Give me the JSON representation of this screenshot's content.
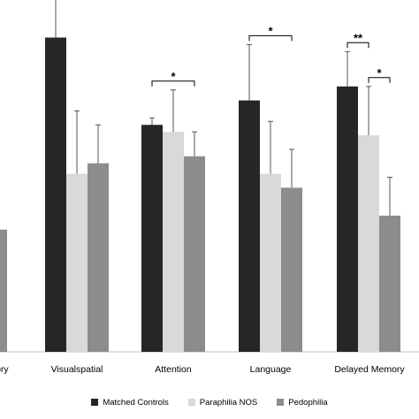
{
  "chart_data": {
    "type": "bar",
    "title": "",
    "xlabel": "",
    "ylabel": "",
    "ylim": [
      0,
      100
    ],
    "categories": [
      "Delayed Memory",
      "Visualspatial",
      "Attention",
      "Language",
      "Delayed Memory"
    ],
    "visible_category_labels": [
      "mory",
      "Visualspatial",
      "Attention",
      "Language",
      "Delayed Memory"
    ],
    "series": [
      {
        "name": "Matched Controls",
        "color": "#262626",
        "values": [
          null,
          90,
          65,
          72,
          76
        ],
        "errors": [
          null,
          11,
          2,
          16,
          10
        ]
      },
      {
        "name": "Paraphilia NOS",
        "color": "#d9d9d9",
        "values": [
          null,
          51,
          63,
          51,
          62
        ],
        "errors": [
          null,
          18,
          12,
          15,
          14
        ]
      },
      {
        "name": "Pedophilia",
        "color": "#8c8c8c",
        "values": [
          35,
          54,
          56,
          47,
          39
        ],
        "errors": [
          9,
          11,
          7,
          11,
          11
        ]
      }
    ],
    "significance": [
      {
        "category": 1,
        "from_series": 0,
        "to_series": 1,
        "label": "**"
      },
      {
        "category": 2,
        "from_series": 0,
        "to_series": 2,
        "label": "*"
      },
      {
        "category": 3,
        "from_series": 0,
        "to_series": 2,
        "label": "*"
      },
      {
        "category": 4,
        "from_series": 0,
        "to_series": 1,
        "label": "**"
      },
      {
        "category": 4,
        "from_series": 1,
        "to_series": 2,
        "label": "*"
      }
    ],
    "legend_position": "bottom",
    "grid": false
  }
}
